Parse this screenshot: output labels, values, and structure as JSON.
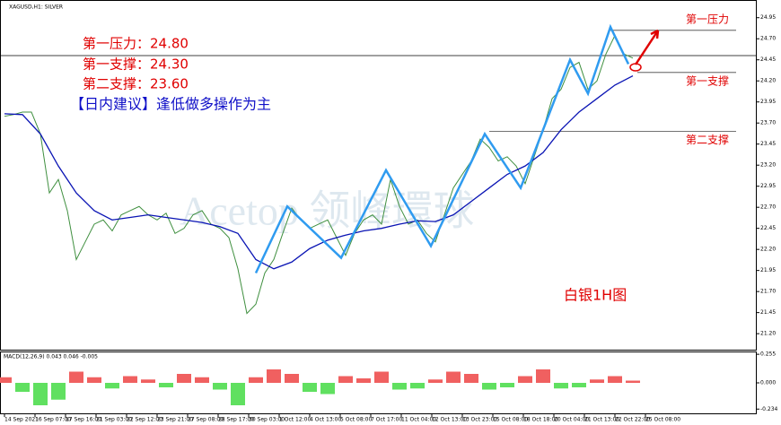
{
  "chart_data": {
    "type": "line",
    "title": "XAGUSD,H1: SILVER",
    "notes": [
      "第一压力：24.80",
      "第一支撑：24.30",
      "第二支撑：23.60",
      "【日内建议】逢低做多操作为主"
    ],
    "caption": "白银1H图",
    "watermark": "Acetop 领峰環球",
    "xlim": [
      0,
      84
    ],
    "ylim": [
      21.01,
      25.16
    ],
    "yticks": [
      24.95,
      {
        "value": 24.7,
        "label": "24.70"
      },
      24.45,
      {
        "value": 24.2,
        "label": "24.20"
      },
      23.95,
      {
        "value": 23.7,
        "label": "23.70"
      },
      23.45,
      {
        "value": 23.2,
        "label": "23.20"
      },
      22.95,
      {
        "value": 22.7,
        "label": "22.70"
      },
      22.45,
      {
        "value": 22.2,
        "label": "22.20"
      },
      21.95,
      {
        "value": 21.7,
        "label": "21.70"
      },
      21.45,
      {
        "value": 21.2,
        "label": "21.20"
      }
    ],
    "xticks": [
      {
        "value": 0,
        "label": "14 Sep 2021"
      },
      {
        "value": 3.4,
        "label": "16 Sep 07:00"
      },
      {
        "value": 6.8,
        "label": "17 Sep 16:00"
      },
      {
        "value": 10.2,
        "label": "21 Sep 03:00"
      },
      {
        "value": 13.6,
        "label": "22 Sep 12:00"
      },
      {
        "value": 17,
        "label": "23 Sep 21:00"
      },
      {
        "value": 20.4,
        "label": "27 Sep 08:00"
      },
      {
        "value": 23.8,
        "label": "28 Sep 17:00"
      },
      {
        "value": 27.2,
        "label": "30 Sep 03:00"
      },
      {
        "value": 30.6,
        "label": "1 Oct 12:00"
      },
      {
        "value": 34,
        "label": "4 Oct 13:00"
      },
      {
        "value": 37.4,
        "label": "5 Oct 08:00"
      },
      {
        "value": 40.8,
        "label": "7 Oct 17:00"
      },
      {
        "value": 44.2,
        "label": "11 Oct 04:00"
      },
      {
        "value": 47.6,
        "label": "12 Oct 13:00"
      },
      {
        "value": 51,
        "label": "13 Oct 23:00"
      },
      {
        "value": 54.4,
        "label": "15 Oct 08:00"
      },
      {
        "value": 57.8,
        "label": "18 Oct 18:00"
      },
      {
        "value": 61.2,
        "label": "20 Oct 04:00"
      },
      {
        "value": 64.6,
        "label": "21 Oct 13:00"
      },
      {
        "value": 68,
        "label": "22 Oct 22:00"
      },
      {
        "value": 71.4,
        "label": "25 Oct 08:00"
      }
    ],
    "series": [
      {
        "color": "#3f8f3f",
        "x": [
          0,
          1,
          2,
          3,
          4,
          5,
          6,
          7,
          8,
          9,
          10,
          11,
          12,
          13,
          14,
          15,
          16,
          17,
          18,
          19,
          20,
          21,
          22,
          23,
          24,
          25,
          26,
          27,
          28,
          29,
          30,
          31,
          32,
          33,
          34,
          35,
          36,
          37,
          38,
          39,
          40,
          41,
          42,
          43,
          44,
          45,
          46,
          47,
          48,
          49,
          50,
          51,
          52,
          53,
          54,
          55,
          56,
          57,
          58,
          59,
          60,
          61,
          62,
          63,
          64,
          65,
          66,
          67,
          68,
          69,
          70
        ],
        "values": [
          23.78,
          23.8,
          23.83,
          23.83,
          23.57,
          22.87,
          23.03,
          22.66,
          22.08,
          22.29,
          22.5,
          22.55,
          22.42,
          22.61,
          22.66,
          22.71,
          22.61,
          22.55,
          22.63,
          22.39,
          22.45,
          22.61,
          22.66,
          22.5,
          22.45,
          22.34,
          21.97,
          21.44,
          21.55,
          21.92,
          22.08,
          22.39,
          22.69,
          22.55,
          22.45,
          22.5,
          22.55,
          22.34,
          22.13,
          22.39,
          22.55,
          22.61,
          22.5,
          23.03,
          22.71,
          22.5,
          22.55,
          22.39,
          22.29,
          22.61,
          22.93,
          23.09,
          23.25,
          23.51,
          23.41,
          23.25,
          23.3,
          23.19,
          22.98,
          23.3,
          23.62,
          23.99,
          24.1,
          24.36,
          24.42,
          24.1,
          24.2,
          24.52,
          24.74,
          24.52,
          24.47
        ]
      },
      {
        "color": "#0a14b4",
        "x": [
          0,
          2,
          4,
          6,
          8,
          10,
          12,
          14,
          16,
          18,
          20,
          22,
          24,
          26,
          28,
          30,
          32,
          34,
          36,
          38,
          40,
          42,
          44,
          46,
          48,
          50,
          52,
          54,
          56,
          58,
          60,
          62,
          64,
          66,
          68,
          70
        ],
        "values": [
          23.81,
          23.8,
          23.57,
          23.19,
          22.87,
          22.66,
          22.55,
          22.58,
          22.61,
          22.58,
          22.55,
          22.52,
          22.47,
          22.39,
          22.08,
          21.97,
          22.05,
          22.21,
          22.31,
          22.37,
          22.42,
          22.45,
          22.5,
          22.54,
          22.53,
          22.61,
          22.77,
          22.93,
          23.09,
          23.19,
          23.35,
          23.62,
          23.83,
          23.99,
          24.15,
          24.26
        ]
      },
      {
        "color": "#2f9bf0",
        "x": [
          28,
          31.5,
          37.5,
          42.5,
          47.5,
          53.5,
          57.5,
          63,
          65,
          67.5,
          69.5
        ],
        "values": [
          21.92,
          22.71,
          22.1,
          23.14,
          22.24,
          23.57,
          22.93,
          24.45,
          24.05,
          24.84,
          24.4
        ]
      }
    ],
    "levels": [
      {
        "name": "第一压力",
        "value": 24.8
      },
      {
        "name": "第一支撑",
        "value": 24.3
      },
      {
        "name": "第二支撑",
        "value": 23.6
      }
    ],
    "macd": {
      "title": "MACD(12,26,9) 0.043 0.046 -0.005",
      "ylim": [
        -0.28,
        0.28
      ],
      "yticks": [
        0.255,
        {
          "value": 0,
          "label": "0.000"
        },
        -0.234
      ],
      "x": [
        0,
        2,
        4,
        6,
        8,
        10,
        12,
        14,
        16,
        18,
        20,
        22,
        24,
        26,
        28,
        30,
        32,
        34,
        36,
        38,
        40,
        42,
        44,
        46,
        48,
        50,
        52,
        54,
        56,
        58,
        60,
        62,
        64,
        66,
        68,
        70
      ],
      "values": [
        0.05,
        -0.08,
        -0.2,
        -0.15,
        0.1,
        0.05,
        -0.05,
        0.06,
        0.03,
        -0.04,
        0.08,
        0.05,
        -0.06,
        -0.2,
        0.05,
        0.12,
        0.08,
        -0.08,
        -0.1,
        0.06,
        0.04,
        0.1,
        -0.06,
        -0.05,
        0.03,
        0.1,
        0.08,
        -0.06,
        -0.04,
        0.06,
        0.12,
        -0.05,
        -0.04,
        0.03,
        0.06,
        0.02
      ]
    }
  }
}
